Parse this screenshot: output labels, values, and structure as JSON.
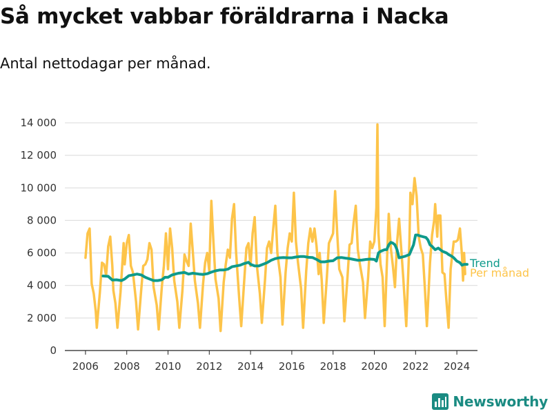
{
  "title": "Så mycket vabbar föräldrarna i Nacka",
  "subtitle": "Antal nettodagar per månad.",
  "brand": "Newsworthy",
  "colors": {
    "trend": "#0e9a8b",
    "monthly": "#fdc44a",
    "grid": "#d9d9d9",
    "axis": "#222222",
    "brand": "#1a8b82"
  },
  "chart_data": {
    "type": "line",
    "xlim": [
      2005,
      2025
    ],
    "ylim": [
      0,
      14000
    ],
    "xticks": [
      2006,
      2008,
      2010,
      2012,
      2014,
      2016,
      2018,
      2020,
      2022,
      2024
    ],
    "yticks": [
      0,
      2000,
      4000,
      6000,
      8000,
      10000,
      12000,
      14000
    ],
    "ytick_labels": [
      "0",
      "2 000",
      "4 000",
      "6 000",
      "8 000",
      "10 000",
      "12 000",
      "14 000"
    ],
    "grid": "horizontal",
    "legend": "end-of-line labels",
    "series": [
      {
        "name": "Per månad",
        "color": "#fdc44a",
        "points": [
          [
            2006.0,
            5700
          ],
          [
            2006.1,
            7200
          ],
          [
            2006.2,
            7500
          ],
          [
            2006.3,
            4100
          ],
          [
            2006.4,
            3500
          ],
          [
            2006.5,
            2400
          ],
          [
            2006.55,
            1400
          ],
          [
            2006.7,
            3600
          ],
          [
            2006.8,
            5400
          ],
          [
            2006.9,
            5300
          ],
          [
            2007.0,
            4600
          ],
          [
            2007.1,
            6400
          ],
          [
            2007.2,
            7000
          ],
          [
            2007.3,
            5200
          ],
          [
            2007.35,
            3700
          ],
          [
            2007.45,
            2900
          ],
          [
            2007.55,
            1400
          ],
          [
            2007.7,
            3600
          ],
          [
            2007.85,
            6600
          ],
          [
            2007.9,
            5300
          ],
          [
            2008.0,
            6600
          ],
          [
            2008.1,
            7100
          ],
          [
            2008.2,
            5200
          ],
          [
            2008.3,
            4800
          ],
          [
            2008.45,
            3000
          ],
          [
            2008.55,
            1300
          ],
          [
            2008.7,
            3700
          ],
          [
            2008.8,
            5200
          ],
          [
            2008.9,
            5300
          ],
          [
            2009.0,
            5600
          ],
          [
            2009.1,
            6600
          ],
          [
            2009.2,
            6200
          ],
          [
            2009.3,
            3900
          ],
          [
            2009.45,
            2800
          ],
          [
            2009.55,
            1300
          ],
          [
            2009.7,
            3900
          ],
          [
            2009.8,
            5200
          ],
          [
            2009.9,
            7200
          ],
          [
            2010.0,
            5000
          ],
          [
            2010.1,
            7500
          ],
          [
            2010.2,
            6300
          ],
          [
            2010.3,
            4300
          ],
          [
            2010.45,
            3000
          ],
          [
            2010.55,
            1400
          ],
          [
            2010.7,
            3700
          ],
          [
            2010.8,
            5900
          ],
          [
            2010.9,
            5500
          ],
          [
            2011.0,
            5200
          ],
          [
            2011.1,
            7800
          ],
          [
            2011.2,
            6100
          ],
          [
            2011.3,
            4300
          ],
          [
            2011.45,
            2900
          ],
          [
            2011.55,
            1400
          ],
          [
            2011.7,
            4100
          ],
          [
            2011.8,
            5400
          ],
          [
            2011.9,
            6000
          ],
          [
            2012.0,
            4900
          ],
          [
            2012.1,
            9200
          ],
          [
            2012.2,
            6700
          ],
          [
            2012.3,
            4400
          ],
          [
            2012.45,
            3200
          ],
          [
            2012.55,
            1200
          ],
          [
            2012.7,
            4200
          ],
          [
            2012.8,
            5300
          ],
          [
            2012.9,
            6200
          ],
          [
            2013.0,
            5700
          ],
          [
            2013.1,
            8100
          ],
          [
            2013.2,
            9000
          ],
          [
            2013.3,
            6000
          ],
          [
            2013.45,
            3200
          ],
          [
            2013.55,
            1500
          ],
          [
            2013.7,
            4400
          ],
          [
            2013.8,
            6300
          ],
          [
            2013.9,
            6600
          ],
          [
            2014.0,
            5200
          ],
          [
            2014.1,
            7200
          ],
          [
            2014.2,
            8200
          ],
          [
            2014.3,
            5300
          ],
          [
            2014.45,
            3500
          ],
          [
            2014.55,
            1700
          ],
          [
            2014.7,
            4300
          ],
          [
            2014.8,
            6300
          ],
          [
            2014.9,
            6700
          ],
          [
            2015.0,
            6000
          ],
          [
            2015.1,
            7500
          ],
          [
            2015.2,
            8900
          ],
          [
            2015.3,
            6000
          ],
          [
            2015.45,
            4500
          ],
          [
            2015.55,
            1600
          ],
          [
            2015.7,
            4800
          ],
          [
            2015.8,
            6300
          ],
          [
            2015.9,
            7200
          ],
          [
            2016.0,
            6700
          ],
          [
            2016.1,
            9700
          ],
          [
            2016.2,
            6700
          ],
          [
            2016.3,
            5400
          ],
          [
            2016.45,
            3800
          ],
          [
            2016.55,
            1400
          ],
          [
            2016.7,
            4900
          ],
          [
            2016.8,
            6600
          ],
          [
            2016.9,
            7500
          ],
          [
            2017.0,
            6700
          ],
          [
            2017.1,
            7500
          ],
          [
            2017.2,
            6400
          ],
          [
            2017.3,
            4700
          ],
          [
            2017.35,
            6000
          ],
          [
            2017.45,
            4300
          ],
          [
            2017.55,
            1700
          ],
          [
            2017.7,
            4500
          ],
          [
            2017.8,
            6600
          ],
          [
            2017.9,
            6900
          ],
          [
            2018.0,
            7200
          ],
          [
            2018.1,
            9800
          ],
          [
            2018.2,
            7200
          ],
          [
            2018.3,
            5000
          ],
          [
            2018.45,
            4500
          ],
          [
            2018.55,
            1800
          ],
          [
            2018.7,
            4500
          ],
          [
            2018.8,
            6500
          ],
          [
            2018.9,
            6600
          ],
          [
            2019.0,
            7900
          ],
          [
            2019.1,
            8900
          ],
          [
            2019.2,
            6200
          ],
          [
            2019.3,
            5300
          ],
          [
            2019.45,
            4200
          ],
          [
            2019.55,
            2000
          ],
          [
            2019.7,
            4500
          ],
          [
            2019.8,
            6700
          ],
          [
            2019.9,
            6300
          ],
          [
            2020.0,
            6700
          ],
          [
            2020.1,
            8800
          ],
          [
            2020.15,
            13900
          ],
          [
            2020.2,
            7200
          ],
          [
            2020.3,
            5300
          ],
          [
            2020.4,
            4500
          ],
          [
            2020.5,
            1500
          ],
          [
            2020.6,
            5000
          ],
          [
            2020.7,
            8400
          ],
          [
            2020.8,
            6300
          ],
          [
            2020.9,
            5200
          ],
          [
            2021.0,
            3900
          ],
          [
            2021.1,
            6600
          ],
          [
            2021.2,
            8100
          ],
          [
            2021.3,
            6300
          ],
          [
            2021.4,
            4500
          ],
          [
            2021.55,
            1500
          ],
          [
            2021.7,
            6600
          ],
          [
            2021.75,
            9700
          ],
          [
            2021.85,
            9000
          ],
          [
            2021.95,
            10600
          ],
          [
            2022.05,
            9500
          ],
          [
            2022.15,
            7000
          ],
          [
            2022.25,
            6300
          ],
          [
            2022.35,
            5900
          ],
          [
            2022.45,
            3800
          ],
          [
            2022.55,
            1500
          ],
          [
            2022.7,
            5400
          ],
          [
            2022.8,
            7100
          ],
          [
            2022.9,
            8000
          ],
          [
            2022.95,
            9000
          ],
          [
            2023.05,
            7000
          ],
          [
            2023.1,
            8300
          ],
          [
            2023.2,
            8300
          ],
          [
            2023.3,
            4800
          ],
          [
            2023.4,
            4700
          ],
          [
            2023.5,
            3000
          ],
          [
            2023.6,
            1400
          ],
          [
            2023.7,
            5000
          ],
          [
            2023.85,
            6700
          ],
          [
            2023.95,
            6700
          ],
          [
            2024.05,
            6800
          ],
          [
            2024.15,
            7500
          ],
          [
            2024.25,
            5800
          ],
          [
            2024.3,
            4300
          ],
          [
            2024.35,
            6000
          ],
          [
            2024.4,
            4700
          ]
        ]
      },
      {
        "name": "Trend",
        "color": "#0e9a8b",
        "points": [
          [
            2006.85,
            4580
          ],
          [
            2007.1,
            4560
          ],
          [
            2007.3,
            4330
          ],
          [
            2007.5,
            4350
          ],
          [
            2007.75,
            4300
          ],
          [
            2007.9,
            4400
          ],
          [
            2008.1,
            4600
          ],
          [
            2008.3,
            4650
          ],
          [
            2008.5,
            4700
          ],
          [
            2008.7,
            4650
          ],
          [
            2008.9,
            4500
          ],
          [
            2009.1,
            4400
          ],
          [
            2009.3,
            4300
          ],
          [
            2009.5,
            4300
          ],
          [
            2009.7,
            4350
          ],
          [
            2009.85,
            4500
          ],
          [
            2010.0,
            4500
          ],
          [
            2010.2,
            4650
          ],
          [
            2010.5,
            4750
          ],
          [
            2010.8,
            4800
          ],
          [
            2011.0,
            4700
          ],
          [
            2011.2,
            4750
          ],
          [
            2011.5,
            4700
          ],
          [
            2011.7,
            4680
          ],
          [
            2011.9,
            4720
          ],
          [
            2012.1,
            4820
          ],
          [
            2012.3,
            4900
          ],
          [
            2012.5,
            4950
          ],
          [
            2012.7,
            4950
          ],
          [
            2012.9,
            5000
          ],
          [
            2013.1,
            5150
          ],
          [
            2013.3,
            5200
          ],
          [
            2013.5,
            5250
          ],
          [
            2013.7,
            5350
          ],
          [
            2013.9,
            5420
          ],
          [
            2014.0,
            5300
          ],
          [
            2014.2,
            5200
          ],
          [
            2014.4,
            5200
          ],
          [
            2014.6,
            5300
          ],
          [
            2014.8,
            5400
          ],
          [
            2015.0,
            5550
          ],
          [
            2015.2,
            5650
          ],
          [
            2015.4,
            5700
          ],
          [
            2015.6,
            5720
          ],
          [
            2015.8,
            5700
          ],
          [
            2016.0,
            5700
          ],
          [
            2016.2,
            5750
          ],
          [
            2016.4,
            5780
          ],
          [
            2016.6,
            5780
          ],
          [
            2016.8,
            5730
          ],
          [
            2017.0,
            5720
          ],
          [
            2017.2,
            5600
          ],
          [
            2017.4,
            5450
          ],
          [
            2017.6,
            5450
          ],
          [
            2017.8,
            5500
          ],
          [
            2018.0,
            5520
          ],
          [
            2018.2,
            5700
          ],
          [
            2018.4,
            5720
          ],
          [
            2018.6,
            5680
          ],
          [
            2018.8,
            5650
          ],
          [
            2019.0,
            5600
          ],
          [
            2019.2,
            5550
          ],
          [
            2019.4,
            5560
          ],
          [
            2019.6,
            5600
          ],
          [
            2019.8,
            5620
          ],
          [
            2020.0,
            5600
          ],
          [
            2020.1,
            5500
          ],
          [
            2020.2,
            6000
          ],
          [
            2020.3,
            6100
          ],
          [
            2020.5,
            6200
          ],
          [
            2020.6,
            6200
          ],
          [
            2020.7,
            6500
          ],
          [
            2020.8,
            6650
          ],
          [
            2020.9,
            6600
          ],
          [
            2021.0,
            6500
          ],
          [
            2021.1,
            6200
          ],
          [
            2021.2,
            5700
          ],
          [
            2021.35,
            5750
          ],
          [
            2021.5,
            5800
          ],
          [
            2021.7,
            5900
          ],
          [
            2021.8,
            6200
          ],
          [
            2021.9,
            6500
          ],
          [
            2022.0,
            7100
          ],
          [
            2022.1,
            7100
          ],
          [
            2022.2,
            7050
          ],
          [
            2022.35,
            7000
          ],
          [
            2022.5,
            6950
          ],
          [
            2022.6,
            6800
          ],
          [
            2022.7,
            6500
          ],
          [
            2022.8,
            6400
          ],
          [
            2022.95,
            6200
          ],
          [
            2023.1,
            6300
          ],
          [
            2023.2,
            6200
          ],
          [
            2023.3,
            6100
          ],
          [
            2023.4,
            6050
          ],
          [
            2023.5,
            6000
          ],
          [
            2023.6,
            5900
          ],
          [
            2023.75,
            5800
          ],
          [
            2023.85,
            5700
          ],
          [
            2024.0,
            5500
          ],
          [
            2024.15,
            5400
          ],
          [
            2024.25,
            5250
          ],
          [
            2024.35,
            5300
          ],
          [
            2024.5,
            5300
          ]
        ]
      }
    ]
  }
}
